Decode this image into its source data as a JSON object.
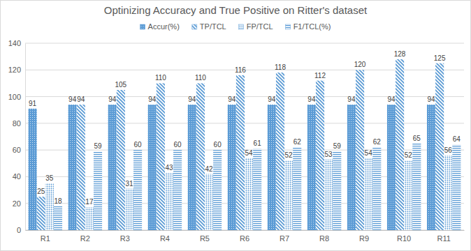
{
  "chart_data": {
    "type": "bar",
    "title": "Optinizing Accuracy and True Positive on Ritter's dataset",
    "categories": [
      "R1",
      "R2",
      "R3",
      "R4",
      "R5",
      "R6",
      "R7",
      "R8",
      "R9",
      "R10",
      "R11"
    ],
    "series": [
      {
        "name": "Accur(%)",
        "color": "#5b9bd5",
        "values": [
          91,
          94,
          94,
          94,
          94,
          94,
          94,
          94,
          94,
          94,
          94
        ]
      },
      {
        "name": "TP/TCL",
        "color": "#5b9bd5",
        "values": [
          25,
          94,
          105,
          110,
          110,
          116,
          118,
          112,
          120,
          128,
          125
        ]
      },
      {
        "name": "FP/TCL",
        "color": "#5b9bd5",
        "values": [
          35,
          17,
          31,
          43,
          42,
          54,
          52,
          53,
          54,
          52,
          56
        ]
      },
      {
        "name": "F1/TCL(%)",
        "color": "#5b9bd5",
        "values": [
          18,
          59,
          60,
          60,
          60,
          61,
          62,
          59,
          62,
          65,
          64
        ]
      }
    ],
    "ylim": [
      0,
      140
    ],
    "yticks": [
      0,
      20,
      40,
      60,
      80,
      100,
      120,
      140
    ],
    "grid": true,
    "legend": "top",
    "data_labels": true
  }
}
